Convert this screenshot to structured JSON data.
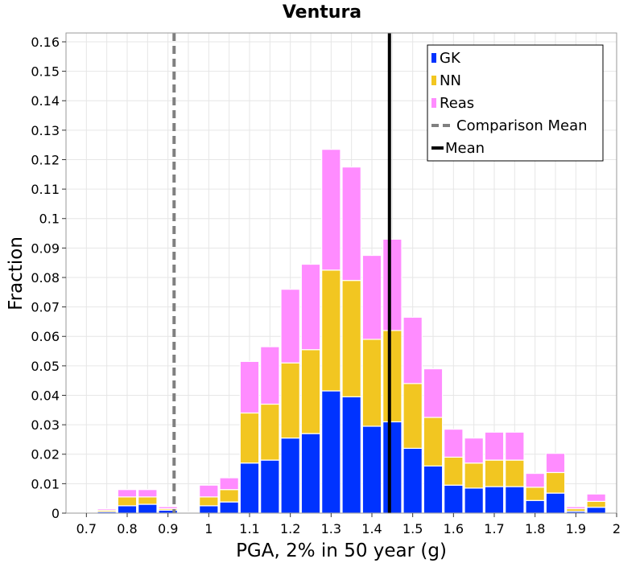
{
  "chart_data": {
    "type": "bar",
    "stacked": true,
    "title": "Ventura",
    "xlabel": "PGA, 2% in 50 year (g)",
    "ylabel": "Fraction",
    "xlim": [
      0.65,
      2.0
    ],
    "ylim": [
      0,
      0.163
    ],
    "grid": true,
    "legend_position": "top-right",
    "bin_width": 0.05,
    "x": [
      0.7,
      0.75,
      0.8,
      0.85,
      0.9,
      0.95,
      1.0,
      1.05,
      1.1,
      1.15,
      1.2,
      1.25,
      1.3,
      1.35,
      1.4,
      1.45,
      1.5,
      1.55,
      1.6,
      1.65,
      1.7,
      1.75,
      1.8,
      1.85,
      1.9,
      1.95
    ],
    "series": [
      {
        "name": "GK",
        "color": "#0033ff",
        "values": [
          0,
          0.0005,
          0.0025,
          0.003,
          0.001,
          0.0003,
          0.0025,
          0.0038,
          0.017,
          0.018,
          0.0255,
          0.027,
          0.0415,
          0.0395,
          0.0295,
          0.031,
          0.022,
          0.016,
          0.0095,
          0.0085,
          0.009,
          0.009,
          0.0043,
          0.0068,
          0.0006,
          0.002
        ]
      },
      {
        "name": "NN",
        "color": "#f2c621",
        "values": [
          0,
          0.0005,
          0.003,
          0.0025,
          0.0005,
          0,
          0.003,
          0.0042,
          0.017,
          0.019,
          0.0255,
          0.0285,
          0.041,
          0.0395,
          0.0295,
          0.031,
          0.022,
          0.0165,
          0.0095,
          0.0085,
          0.009,
          0.009,
          0.0045,
          0.007,
          0.0009,
          0.002
        ]
      },
      {
        "name": "Reas",
        "color": "#ff8cff",
        "values": [
          0,
          0.0005,
          0.0025,
          0.0025,
          0.0007,
          0,
          0.004,
          0.004,
          0.0175,
          0.0195,
          0.025,
          0.029,
          0.041,
          0.0385,
          0.0285,
          0.031,
          0.0225,
          0.0165,
          0.0095,
          0.0085,
          0.0095,
          0.0095,
          0.0047,
          0.0065,
          0.0007,
          0.0025
        ]
      }
    ],
    "lines": [
      {
        "name": "Comparison Mean",
        "x": 0.915,
        "color": "#808080",
        "style": "dashed"
      },
      {
        "name": "Mean",
        "x": 1.443,
        "color": "#000000",
        "style": "solid"
      }
    ],
    "xticks": [
      "0.7",
      "0.8",
      "0.9",
      "1",
      "1.1",
      "1.2",
      "1.3",
      "1.4",
      "1.5",
      "1.6",
      "1.7",
      "1.8",
      "1.9",
      "2"
    ],
    "yticks": [
      "0",
      "0.01",
      "0.02",
      "0.03",
      "0.04",
      "0.05",
      "0.06",
      "0.07",
      "0.08",
      "0.09",
      "0.1",
      "0.11",
      "0.12",
      "0.13",
      "0.14",
      "0.15",
      "0.16"
    ]
  }
}
